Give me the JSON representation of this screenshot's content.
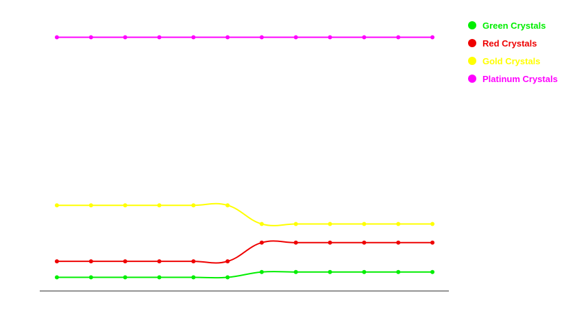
{
  "chart_data": {
    "type": "line",
    "title": "",
    "xlabel": "",
    "ylabel": "",
    "x": [
      1,
      2,
      3,
      4,
      5,
      6,
      7,
      8,
      9,
      10,
      11,
      12
    ],
    "ylim": [
      0,
      100
    ],
    "grid": false,
    "legend_position": "top-right",
    "series": [
      {
        "name": "Green Crystals",
        "color": "#00ee00",
        "values": [
          5,
          5,
          5,
          5,
          5,
          5,
          7,
          7,
          7,
          7,
          7,
          7
        ]
      },
      {
        "name": "Red Crystals",
        "color": "#ee0000",
        "values": [
          11,
          11,
          11,
          11,
          11,
          11,
          18,
          18,
          18,
          18,
          18,
          18
        ]
      },
      {
        "name": "Gold Crystals",
        "color": "#ffff00",
        "values": [
          32,
          32,
          32,
          32,
          32,
          32,
          25,
          25,
          25,
          25,
          25,
          25
        ]
      },
      {
        "name": "Platinum Crystals",
        "color": "#ff00ff",
        "values": [
          95,
          95,
          95,
          95,
          95,
          95,
          95,
          95,
          95,
          95,
          95,
          95
        ]
      }
    ]
  }
}
